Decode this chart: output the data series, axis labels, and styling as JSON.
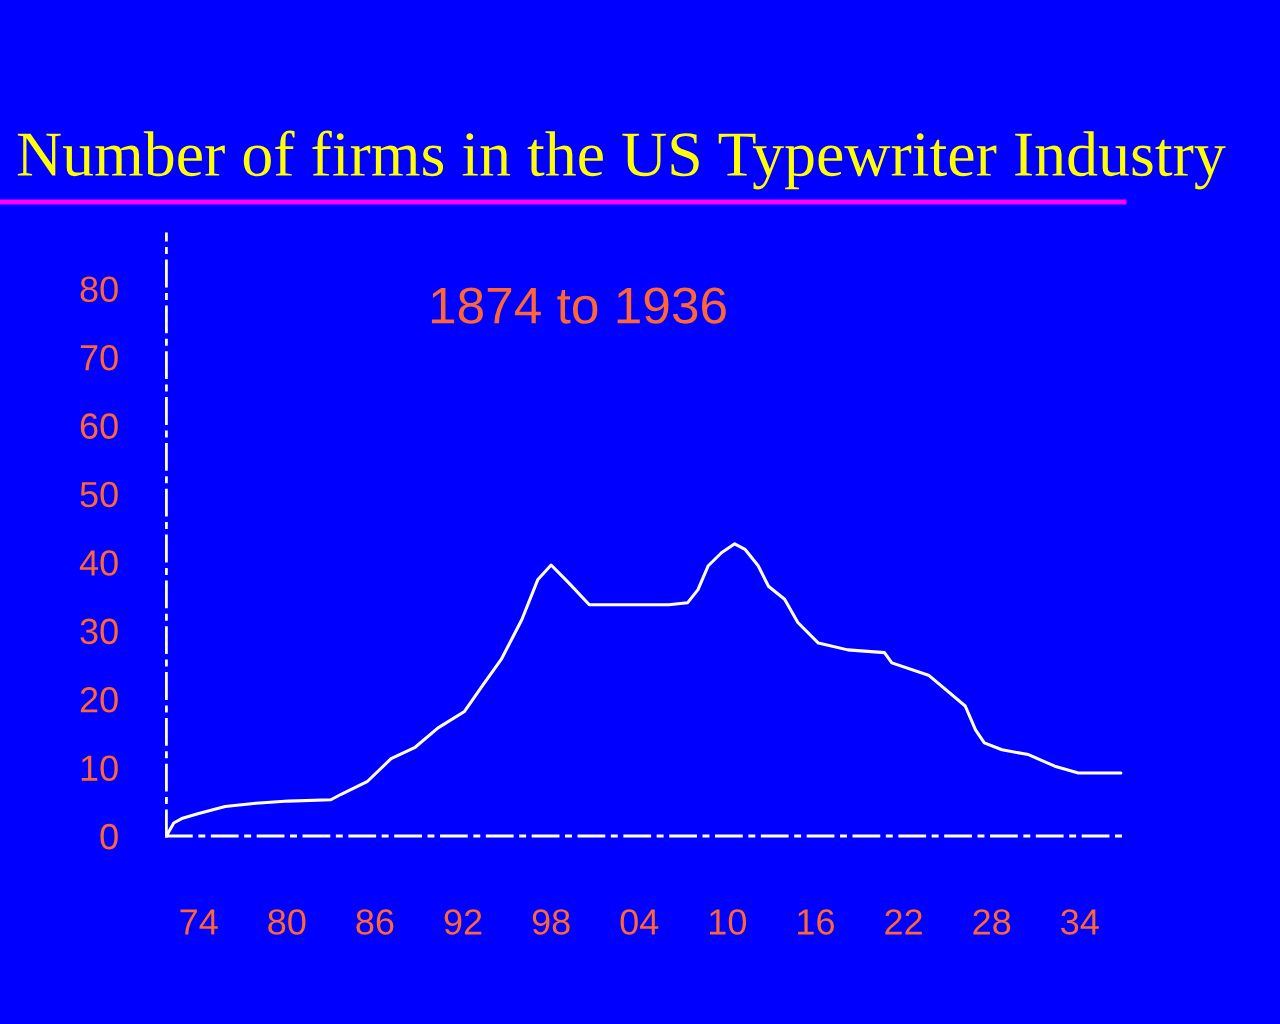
{
  "chart_data": {
    "type": "line",
    "title": "Number of firms in the US Typewriter Industry",
    "subtitle": "1874 to 1936",
    "x": [
      1871.8,
      1872.3,
      1872.9,
      1874.0,
      1875.8,
      1877.9,
      1880.1,
      1883.0,
      1883.7,
      1885.5,
      1887.1,
      1888.7,
      1890.3,
      1892.1,
      1893.3,
      1894.6,
      1896.0,
      1897.1,
      1898.0,
      1899.2,
      1900.6,
      1906.0,
      1907.3,
      1908.0,
      1908.7,
      1909.6,
      1910.5,
      1911.2,
      1912.1,
      1912.8,
      1913.9,
      1914.8,
      1916.2,
      1918.2,
      1920.7,
      1921.2,
      1923.7,
      1926.2,
      1926.9,
      1927.5,
      1928.7,
      1930.5,
      1932.3,
      1933.9,
      1936.8
    ],
    "series": [
      {
        "color": "#ffffff",
        "values": [
          0,
          1.9,
          2.6,
          3.3,
          4.3,
          4.8,
          5.1,
          5.3,
          6.1,
          8.0,
          11.3,
          12.9,
          15.8,
          18.2,
          21.9,
          25.8,
          31.6,
          37.5,
          39.6,
          37.0,
          33.8,
          33.8,
          34.1,
          36.0,
          39.5,
          41.4,
          42.7,
          41.9,
          39.5,
          36.5,
          34.6,
          31.2,
          28.2,
          27.2,
          26.8,
          25.3,
          23.5,
          19.0,
          15.5,
          13.6,
          12.6,
          11.9,
          10.2,
          9.2,
          9.2
        ]
      }
    ],
    "xlim": [
      1871.8,
      1937
    ],
    "xticks": [
      {
        "value": 1874,
        "label": "74"
      },
      {
        "value": 1880,
        "label": "80"
      },
      {
        "value": 1886,
        "label": "86"
      },
      {
        "value": 1892,
        "label": "92"
      },
      {
        "value": 1898,
        "label": "98"
      },
      {
        "value": 1904,
        "label": "04"
      },
      {
        "value": 1910,
        "label": "10"
      },
      {
        "value": 1916,
        "label": "16"
      },
      {
        "value": 1922,
        "label": "22"
      },
      {
        "value": 1928,
        "label": "28"
      },
      {
        "value": 1934,
        "label": "34"
      }
    ],
    "ylim": [
      0,
      88
    ],
    "yticks": [
      0,
      10,
      20,
      30,
      40,
      50,
      60,
      70,
      80
    ]
  }
}
